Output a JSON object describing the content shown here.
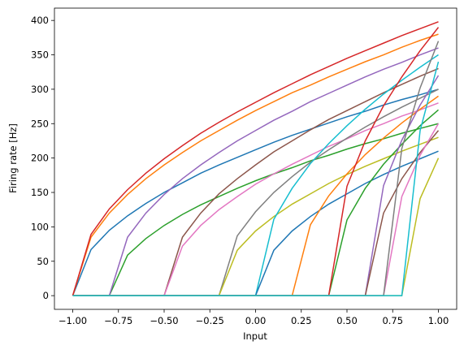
{
  "chart_data": {
    "type": "line",
    "xlabel": "Input",
    "ylabel": "Firing rate [Hz]",
    "x": [
      -1,
      -0.9,
      -0.8,
      -0.7,
      -0.6,
      -0.5,
      -0.4,
      -0.3,
      -0.2,
      -0.1,
      0,
      0.1,
      0.2,
      0.3,
      0.4,
      0.5,
      0.6,
      0.7,
      0.8,
      0.9,
      1
    ],
    "xlim": [
      -1.1,
      1.1
    ],
    "ylim": [
      -19.9,
      417.9
    ],
    "xticks": [
      {
        "value": -1,
        "label": "−1.00"
      },
      {
        "value": -0.75,
        "label": "−0.75"
      },
      {
        "value": -0.5,
        "label": "−0.50"
      },
      {
        "value": -0.25,
        "label": "−0.25"
      },
      {
        "value": 0,
        "label": "0.00"
      },
      {
        "value": 0.25,
        "label": "0.25"
      },
      {
        "value": 0.5,
        "label": "0.50"
      },
      {
        "value": 0.75,
        "label": "0.75"
      },
      {
        "value": 1,
        "label": "1.00"
      }
    ],
    "yticks": [
      0,
      50,
      100,
      150,
      200,
      250,
      300,
      350,
      400
    ],
    "series": [
      {
        "color": "#1f77b4",
        "values": [
          0,
          67,
          95,
          116,
          134,
          150,
          164,
          178,
          190,
          201,
          212,
          223,
          233,
          242,
          251,
          260,
          268,
          277,
          285,
          292,
          300
        ]
      },
      {
        "color": "#ff7f0e",
        "values": [
          0,
          85,
          120,
          147,
          170,
          190,
          208,
          225,
          240,
          255,
          269,
          282,
          295,
          306,
          318,
          329,
          340,
          350,
          361,
          371,
          380
        ]
      },
      {
        "color": "#2ca02c",
        "values": [
          0,
          0,
          0,
          59,
          83,
          102,
          118,
          132,
          144,
          156,
          167,
          177,
          186,
          196,
          204,
          213,
          221,
          228,
          236,
          243,
          250
        ]
      },
      {
        "color": "#d62728",
        "values": [
          0,
          89,
          126,
          154,
          178,
          199,
          218,
          236,
          252,
          267,
          281,
          295,
          308,
          321,
          333,
          345,
          356,
          367,
          378,
          388,
          398
        ]
      },
      {
        "color": "#9467bd",
        "values": [
          0,
          0,
          0,
          85,
          120,
          147,
          170,
          190,
          208,
          225,
          240,
          255,
          268,
          282,
          294,
          306,
          318,
          329,
          339,
          350,
          360
        ]
      },
      {
        "color": "#8c564b",
        "values": [
          0,
          0,
          0,
          0,
          0,
          0,
          85,
          120,
          148,
          170,
          190,
          209,
          225,
          241,
          256,
          269,
          282,
          295,
          307,
          319,
          330
        ]
      },
      {
        "color": "#e377c2",
        "values": [
          0,
          0,
          0,
          0,
          0,
          0,
          72,
          102,
          125,
          144,
          162,
          177,
          191,
          204,
          217,
          228,
          240,
          250,
          261,
          270,
          280
        ]
      },
      {
        "color": "#7f7f7f",
        "values": [
          0,
          0,
          0,
          0,
          0,
          0,
          0,
          0,
          0,
          87,
          122,
          150,
          173,
          194,
          212,
          229,
          245,
          260,
          274,
          287,
          300
        ]
      },
      {
        "color": "#bcbd22",
        "values": [
          0,
          0,
          0,
          0,
          0,
          0,
          0,
          0,
          0,
          66,
          94,
          115,
          133,
          148,
          163,
          176,
          188,
          199,
          210,
          220,
          230
        ]
      },
      {
        "color": "#17becf",
        "values": [
          0,
          0,
          0,
          0,
          0,
          0,
          0,
          0,
          0,
          0,
          0,
          111,
          156,
          192,
          221,
          247,
          271,
          293,
          313,
          332,
          350
        ]
      },
      {
        "color": "#1f77b4",
        "values": [
          0,
          0,
          0,
          0,
          0,
          0,
          0,
          0,
          0,
          0,
          0,
          66,
          94,
          115,
          133,
          148,
          163,
          176,
          188,
          199,
          210
        ]
      },
      {
        "color": "#ff7f0e",
        "values": [
          0,
          0,
          0,
          0,
          0,
          0,
          0,
          0,
          0,
          0,
          0,
          0,
          0,
          103,
          145,
          177,
          205,
          229,
          251,
          271,
          290
        ]
      },
      {
        "color": "#2ca02c",
        "values": [
          0,
          0,
          0,
          0,
          0,
          0,
          0,
          0,
          0,
          0,
          0,
          0,
          0,
          0,
          0,
          110,
          156,
          191,
          220,
          247,
          270
        ]
      },
      {
        "color": "#d62728",
        "values": [
          0,
          0,
          0,
          0,
          0,
          0,
          0,
          0,
          0,
          0,
          0,
          0,
          0,
          0,
          0,
          159,
          225,
          276,
          318,
          356,
          390
        ]
      },
      {
        "color": "#9467bd",
        "values": [
          0,
          0,
          0,
          0,
          0,
          0,
          0,
          0,
          0,
          0,
          0,
          0,
          0,
          0,
          0,
          0,
          0,
          160,
          226,
          277,
          320
        ]
      },
      {
        "color": "#8c564b",
        "values": [
          0,
          0,
          0,
          0,
          0,
          0,
          0,
          0,
          0,
          0,
          0,
          0,
          0,
          0,
          0,
          0,
          0,
          120,
          170,
          208,
          240
        ]
      },
      {
        "color": "#e377c2",
        "values": [
          0,
          0,
          0,
          0,
          0,
          0,
          0,
          0,
          0,
          0,
          0,
          0,
          0,
          0,
          0,
          0,
          0,
          0,
          144,
          204,
          250
        ]
      },
      {
        "color": "#7f7f7f",
        "values": [
          0,
          0,
          0,
          0,
          0,
          0,
          0,
          0,
          0,
          0,
          0,
          0,
          0,
          0,
          0,
          0,
          0,
          0,
          214,
          302,
          370
        ]
      },
      {
        "color": "#bcbd22",
        "values": [
          0,
          0,
          0,
          0,
          0,
          0,
          0,
          0,
          0,
          0,
          0,
          0,
          0,
          0,
          0,
          0,
          0,
          0,
          0,
          141,
          200
        ]
      },
      {
        "color": "#17becf",
        "values": [
          0,
          0,
          0,
          0,
          0,
          0,
          0,
          0,
          0,
          0,
          0,
          0,
          0,
          0,
          0,
          0,
          0,
          0,
          0,
          240,
          340
        ]
      }
    ]
  }
}
